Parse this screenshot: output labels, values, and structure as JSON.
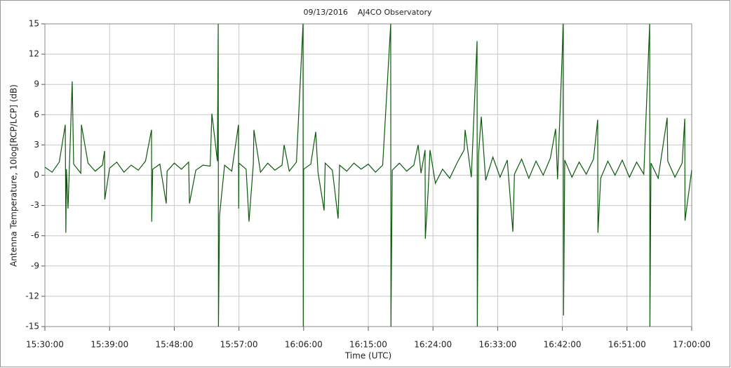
{
  "chart_data": {
    "type": "line",
    "title": "09/13/2016    AJ4CO Observatory",
    "xlabel": "Time (UTC)",
    "ylabel": "Antenna Temperature, 10log[RCP/LCP] (dB)",
    "color": "#0a5a0a",
    "grid": true,
    "xlim": [
      55800,
      61200
    ],
    "ylim": [
      -15,
      15
    ],
    "yticks": [
      -15,
      -12,
      -9,
      -6,
      -3,
      0,
      3,
      6,
      9,
      12,
      15
    ],
    "xticks": [
      {
        "value": 55800,
        "label": "15:30:00"
      },
      {
        "value": 56340,
        "label": "15:39:00"
      },
      {
        "value": 56880,
        "label": "15:48:00"
      },
      {
        "value": 57420,
        "label": "15:57:00"
      },
      {
        "value": 57960,
        "label": "16:06:00"
      },
      {
        "value": 58500,
        "label": "16:15:00"
      },
      {
        "value": 59040,
        "label": "16:24:00"
      },
      {
        "value": 59580,
        "label": "16:33:00"
      },
      {
        "value": 60120,
        "label": "16:42:00"
      },
      {
        "value": 60660,
        "label": "16:51:00"
      },
      {
        "value": 61200,
        "label": "17:00:00"
      }
    ],
    "x": [
      55800,
      55860,
      55920,
      55970,
      55975,
      55980,
      55993,
      56028,
      56040,
      56100,
      56105,
      56160,
      56220,
      56280,
      56298,
      56300,
      56340,
      56400,
      56460,
      56520,
      56580,
      56640,
      56690,
      56692,
      56700,
      56760,
      56813,
      56820,
      56880,
      56940,
      57000,
      57007,
      57060,
      57120,
      57180,
      57194,
      57240,
      57247,
      57249,
      57258,
      57300,
      57360,
      57416,
      57418,
      57420,
      57480,
      57504,
      57540,
      57545,
      57600,
      57660,
      57720,
      57780,
      57797,
      57840,
      57900,
      57955,
      57957,
      57960,
      58020,
      58061,
      58080,
      58131,
      58140,
      58200,
      58248,
      58260,
      58320,
      58380,
      58440,
      58500,
      58560,
      58620,
      58687,
      58689,
      58700,
      58760,
      58820,
      58880,
      58916,
      58940,
      58974,
      58976,
      59000,
      59015,
      59060,
      59120,
      59180,
      59240,
      59300,
      59308,
      59360,
      59408,
      59410,
      59420,
      59443,
      59480,
      59540,
      59600,
      59660,
      59707,
      59720,
      59780,
      59840,
      59900,
      59960,
      60020,
      60064,
      60080,
      60128,
      60130,
      60140,
      60200,
      60260,
      60320,
      60380,
      60415,
      60417,
      60440,
      60500,
      60560,
      60620,
      60680,
      60740,
      60800,
      60849,
      60851,
      60860,
      60920,
      60995,
      61000,
      61060,
      61120,
      61142,
      61144,
      61200
    ],
    "values": [
      0.8,
      0.3,
      1.3,
      5,
      -5.7,
      0.6,
      -3.3,
      9.3,
      1.1,
      0.2,
      5,
      1.2,
      0.4,
      1.0,
      2.4,
      -2.4,
      0.7,
      1.3,
      0.3,
      1.0,
      0.5,
      1.4,
      4.5,
      -4.6,
      0.6,
      1.1,
      -2.8,
      0.4,
      1.2,
      0.6,
      1.3,
      -2.8,
      0.5,
      1.0,
      0.9,
      6.1,
      1.4,
      15,
      -15,
      -4,
      1.0,
      0.4,
      5,
      -3.3,
      1.2,
      0.6,
      -4.6,
      1.1,
      4.5,
      0.3,
      1.2,
      0.5,
      1.0,
      3,
      0.4,
      1.3,
      15,
      -15,
      0.6,
      1.1,
      4.3,
      0.3,
      -3.5,
      1.2,
      0.5,
      -4.3,
      1.0,
      0.4,
      1.2,
      0.6,
      1.1,
      0.3,
      1.0,
      15,
      -15,
      0.5,
      1.2,
      0.4,
      1.0,
      3,
      0.2,
      2.5,
      -6.3,
      -1.5,
      2.5,
      -0.8,
      0.6,
      -0.3,
      1.2,
      2.5,
      4.5,
      -0.2,
      13.3,
      -15,
      2.0,
      5.8,
      -0.5,
      1.8,
      -0.2,
      1.5,
      -5.6,
      0.1,
      1.6,
      -0.3,
      1.4,
      0.0,
      1.7,
      4.6,
      -0.4,
      15,
      -13.9,
      1.5,
      -0.2,
      1.3,
      0.1,
      1.6,
      5.5,
      -5.7,
      -0.3,
      1.4,
      0.0,
      1.5,
      -0.2,
      1.3,
      0.1,
      15,
      -15,
      1.2,
      -0.3,
      5.7,
      1.4,
      -0.2,
      1.2,
      5.6,
      -4.5,
      0.5
    ]
  }
}
